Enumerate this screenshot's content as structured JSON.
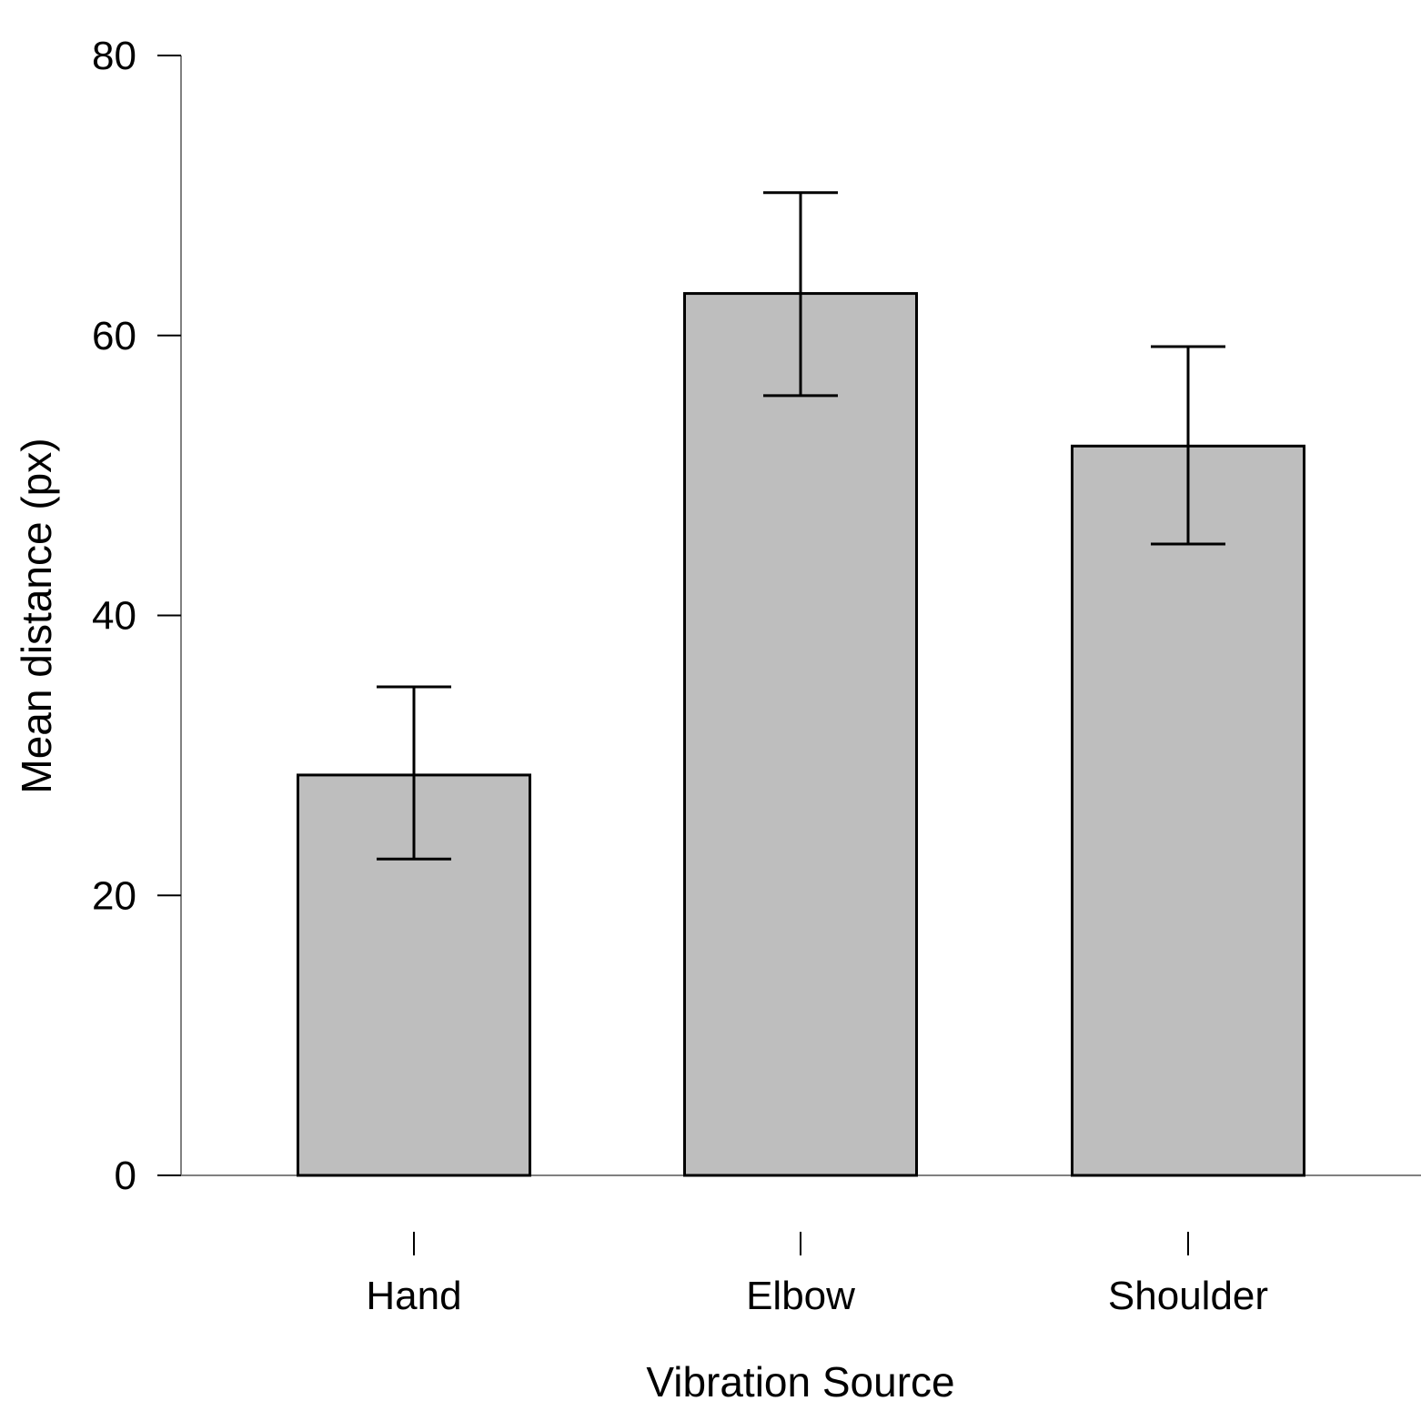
{
  "chart_data": {
    "type": "bar",
    "categories": [
      "Hand",
      "Elbow",
      "Shoulder"
    ],
    "values": [
      28.6,
      63.0,
      52.1
    ],
    "error_upper": [
      34.9,
      70.2,
      59.2
    ],
    "error_lower": [
      22.6,
      55.7,
      45.1
    ],
    "xlabel": "Vibration Source",
    "ylabel": "Mean distance (px)",
    "ylim": [
      0,
      80
    ],
    "yticks": [
      0,
      20,
      40,
      60,
      80
    ],
    "grid": false,
    "legend": "none"
  },
  "colors": {
    "bar_fill": "#bebebe",
    "bar_stroke": "#000000",
    "axis": "#808080",
    "error_bar": "#000000"
  }
}
